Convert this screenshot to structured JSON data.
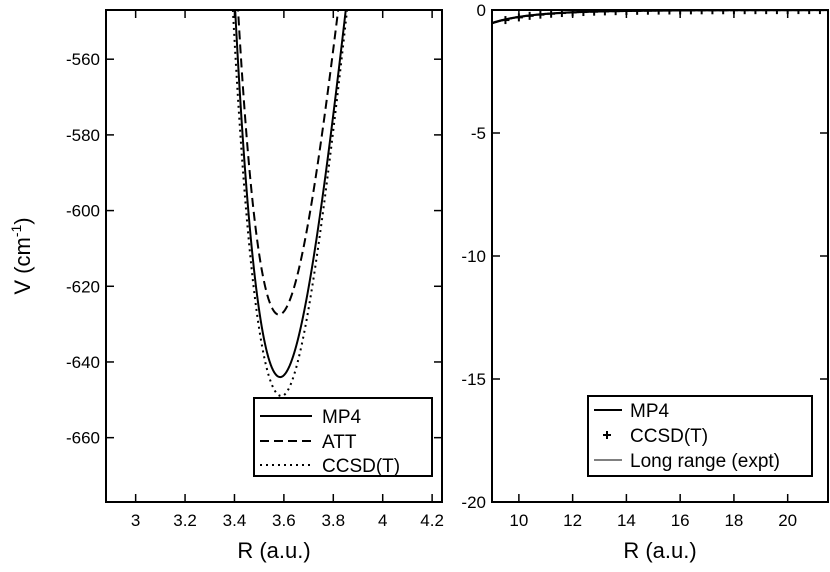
{
  "chart_data": [
    {
      "type": "line",
      "panel": "left",
      "xlabel": "R (a.u.)",
      "ylabel": "V (cm",
      "ylabel_sup": "-1",
      "ylabel_close": ")",
      "xlim": [
        2.88,
        4.24
      ],
      "ylim": [
        -677,
        -547
      ],
      "xticks": [
        3,
        3.2,
        3.4,
        3.6,
        3.8,
        4,
        4.2
      ],
      "xtick_labels": [
        "3",
        "3.2",
        "3.4",
        "3.6",
        "3.8",
        "4",
        "4.2"
      ],
      "yticks": [
        -660,
        -640,
        -620,
        -600,
        -580,
        -560
      ],
      "ytick_labels": [
        "-660",
        "-640",
        "-620",
        "-600",
        "-580",
        "-560"
      ],
      "legend_position": "bottom-right",
      "series": [
        {
          "name": "MP4",
          "style": "solid",
          "r0": 3.585,
          "vmin": -644,
          "a": 1.8,
          "b": 1.85
        },
        {
          "name": "ATT",
          "style": "dashed",
          "r0": 3.58,
          "vmin": -627.5,
          "a": 1.85,
          "b": 1.85
        },
        {
          "name": "CCSD(T)",
          "style": "dotted",
          "r0": 3.59,
          "vmin": -649,
          "a": 1.7,
          "b": 1.9
        }
      ]
    },
    {
      "type": "line",
      "panel": "right",
      "xlabel": "R (a.u.)",
      "xlim": [
        9,
        21.5
      ],
      "ylim": [
        -20,
        0
      ],
      "xticks": [
        10,
        12,
        14,
        16,
        18,
        20
      ],
      "xtick_labels": [
        "10",
        "12",
        "14",
        "16",
        "18",
        "20"
      ],
      "yticks": [
        -20,
        -15,
        -10,
        -5,
        0
      ],
      "ytick_labels": [
        "-20",
        "-15",
        "-10",
        "-5",
        "0"
      ],
      "legend_position": "bottom-right",
      "series": [
        {
          "name": "MP4",
          "style": "solid-thick",
          "coef": -281000,
          "power": 6
        },
        {
          "name": "CCSD(T)",
          "style": "plus-markers",
          "coef": -301000,
          "power": 6
        },
        {
          "name": "Long range (expt)",
          "style": "solid-thin",
          "coef": -301000,
          "power": 6
        }
      ],
      "marker_x": [
        9.5,
        10,
        10.4,
        10.8,
        11.2,
        11.6,
        12,
        12.4,
        12.8,
        13.2,
        13.6,
        14,
        14.4,
        14.8,
        15.2,
        15.6,
        16,
        16.4,
        16.8,
        17.2,
        17.6,
        18,
        18.4,
        18.8,
        19.2,
        19.6,
        20,
        20.4,
        20.8,
        21.2
      ]
    }
  ]
}
